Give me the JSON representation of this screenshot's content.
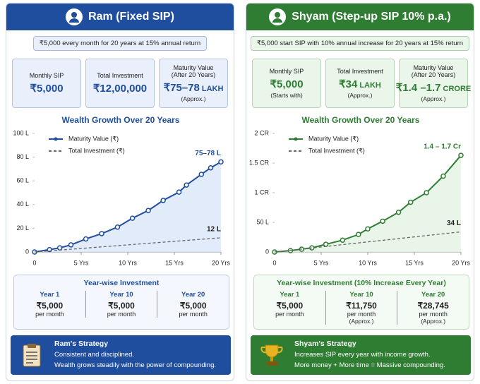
{
  "panels": [
    {
      "title": "Ram (Fixed SIP)",
      "color": "#1f4e9e",
      "light": "#eaf0fb",
      "subtitle": "₹5,000 every month for 20 years at 15% annual return",
      "stats": [
        {
          "label": "Monthly SIP",
          "value": "₹5,000"
        },
        {
          "label": "Total Investment",
          "value": "₹12,00,000"
        },
        {
          "label": "Maturity Value",
          "label2": "(After 20 Years)",
          "value": "₹75–78",
          "unit": "LAKH",
          "note": "(Approx.)"
        }
      ],
      "yearwise": {
        "title": "Year-wise Investment",
        "items": [
          {
            "year": "Year 1",
            "amount": "₹5,000",
            "per": "per month"
          },
          {
            "year": "Year 10",
            "amount": "₹5,000",
            "per": "per month"
          },
          {
            "year": "Year 20",
            "amount": "₹5,000",
            "per": "per month"
          }
        ]
      },
      "strategy": {
        "title": "Ram's Strategy",
        "lines": [
          "Consistent and disciplined.",
          "Wealth grows steadily with the power of compounding."
        ]
      }
    },
    {
      "title": "Shyam (Step-up SIP 10% p.a.)",
      "color": "#2e7d32",
      "light": "#eaf6ea",
      "subtitle": "₹5,000 start SIP with 10% annual increase for 20 years at 15% return",
      "stats": [
        {
          "label": "Monthly SIP",
          "value": "₹5,000",
          "note": "(Starts with)"
        },
        {
          "label": "Total Investment",
          "value": "₹34",
          "unit": "LAKH",
          "note": "(Approx.)"
        },
        {
          "label": "Maturity Value",
          "label2": "(After 20 Years)",
          "value": "₹1.4 –1.7",
          "unit": "CRORE",
          "note": "(Approx.)"
        }
      ],
      "yearwise": {
        "title": "Year-wise Investment (10% Increase Every Year)",
        "items": [
          {
            "year": "Year 1",
            "amount": "₹5,000",
            "per": "per month"
          },
          {
            "year": "Year 10",
            "amount": "₹11,750",
            "per": "per month",
            "note": "(Approx.)"
          },
          {
            "year": "Year 20",
            "amount": "₹28,745",
            "per": "per month",
            "note": "(Approx.)"
          }
        ]
      },
      "strategy": {
        "title": "Shyam's Strategy",
        "lines": [
          "Increases SIP every year with income growth.",
          "More money + More time = Massive compounding."
        ]
      }
    }
  ],
  "chart_data": [
    {
      "type": "line",
      "title": "Wealth Growth Over 20 Years",
      "color": "#1f4e9e",
      "xlim": [
        0,
        20
      ],
      "ylim": [
        0,
        100
      ],
      "xticks": [
        0,
        {
          "value": 5,
          "label": "5 Yrs"
        },
        {
          "value": 10,
          "label": "10 Yrs"
        },
        {
          "value": 15,
          "label": "15 Yrs"
        },
        {
          "value": 20,
          "label": "20 Yrs"
        }
      ],
      "yticks": [
        0,
        {
          "value": 20,
          "label": "20 L"
        },
        {
          "value": 40,
          "label": "40 L"
        },
        {
          "value": 60,
          "label": "60 L"
        },
        {
          "value": 80,
          "label": "80 L"
        },
        {
          "value": 100,
          "label": "100 L"
        }
      ],
      "series": [
        {
          "name": "Maturity Value (₹)",
          "color": "#1f4e9e",
          "fill": "#dbe6f7",
          "markers": true,
          "end_label": "75–78 L",
          "x": [
            0,
            1.6,
            2.7,
            3.9,
            5.5,
            7.2,
            8.9,
            10.5,
            12.2,
            13.8,
            15.5,
            16.3,
            17.9,
            18.9,
            20
          ],
          "values": [
            0,
            2,
            3.5,
            6,
            11,
            15.5,
            21,
            28.5,
            35,
            43.5,
            50.5,
            56.5,
            65.5,
            71,
            76
          ]
        },
        {
          "name": "Total Investment (₹)",
          "color": "#666666",
          "dashed": true,
          "end_label": "12 L",
          "x": [
            0,
            20
          ],
          "values": [
            0,
            12
          ]
        }
      ]
    },
    {
      "type": "line",
      "title": "Wealth Growth Over 20 Years",
      "color": "#2e7d32",
      "xlim": [
        0,
        20
      ],
      "ylim": [
        0,
        200
      ],
      "xticks": [
        0,
        {
          "value": 5,
          "label": "5 Yrs"
        },
        {
          "value": 10,
          "label": "10 Yrs"
        },
        {
          "value": 15,
          "label": "15 Yrs"
        },
        {
          "value": 20,
          "label": "20 Yrs"
        }
      ],
      "yticks": [
        0,
        {
          "value": 50,
          "label": "50 L"
        },
        {
          "value": 100,
          "label": "1 CR"
        },
        {
          "value": 150,
          "label": "1.5 CR"
        },
        {
          "value": 200,
          "label": "2 CR"
        }
      ],
      "series": [
        {
          "name": "Maturity Value (₹)",
          "color": "#2e7d32",
          "fill": "#e3f2e3",
          "markers": true,
          "end_label": "1.4 – 1.7 Cr",
          "x": [
            0,
            1.7,
            2.9,
            4,
            5.5,
            7.3,
            9,
            10,
            11.6,
            13.3,
            14.6,
            16.3,
            18.1,
            20
          ],
          "values": [
            0,
            2.4,
            4.7,
            7,
            13,
            20,
            29.6,
            39,
            52,
            67,
            84,
            100,
            128,
            163
          ]
        },
        {
          "name": "Total Investment (₹)",
          "color": "#666666",
          "dashed": true,
          "end_label": "34 L",
          "x": [
            0,
            20
          ],
          "values": [
            0,
            34
          ]
        }
      ]
    }
  ]
}
